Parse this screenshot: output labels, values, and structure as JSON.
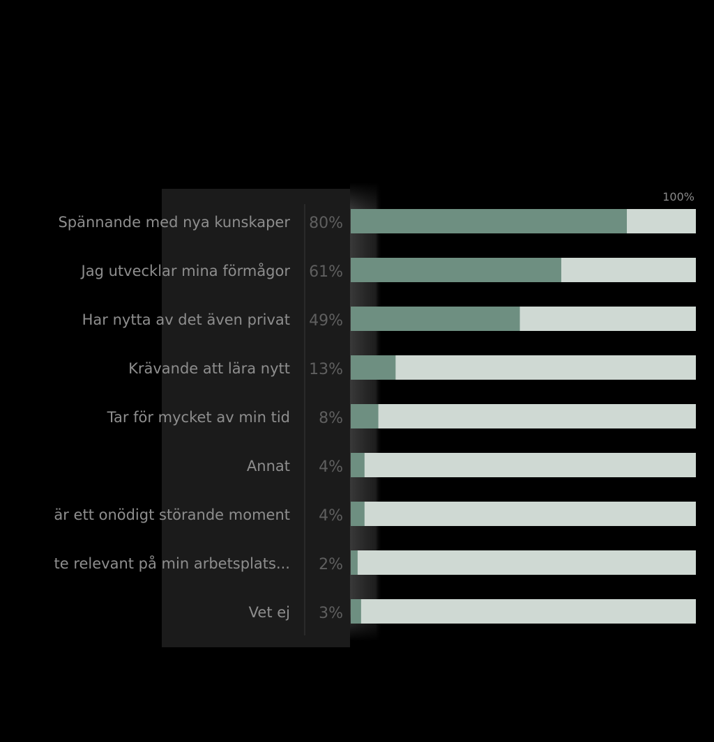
{
  "colors": {
    "background": "#000000",
    "panel": "#1b1b1b",
    "separator": "#3a3a3a",
    "bar_fill": "#6e8f81",
    "bar_track": "#cfd9d3",
    "shadow_band": "#3a3a3a"
  },
  "chart_data": {
    "type": "bar",
    "orientation": "horizontal",
    "stacked_with_remainder": true,
    "categories": [
      "Spännande med nya kunskaper",
      "Jag utvecklar mina förmågor",
      "Har nytta av det även privat",
      "Krävande att lära nytt",
      "Tar för mycket av min tid",
      "Annat",
      "är ett onödigt störande moment",
      "te relevant på min arbetsplats...",
      "Vet ej"
    ],
    "values": [
      80,
      61,
      49,
      13,
      8,
      4,
      4,
      2,
      3
    ],
    "value_labels": [
      "80%",
      "61%",
      "49%",
      "13%",
      "8%",
      "4%",
      "4%",
      "2%",
      "3%"
    ],
    "max_label": "100%",
    "xlim": [
      0,
      100
    ],
    "grid": false,
    "legend": "none"
  }
}
